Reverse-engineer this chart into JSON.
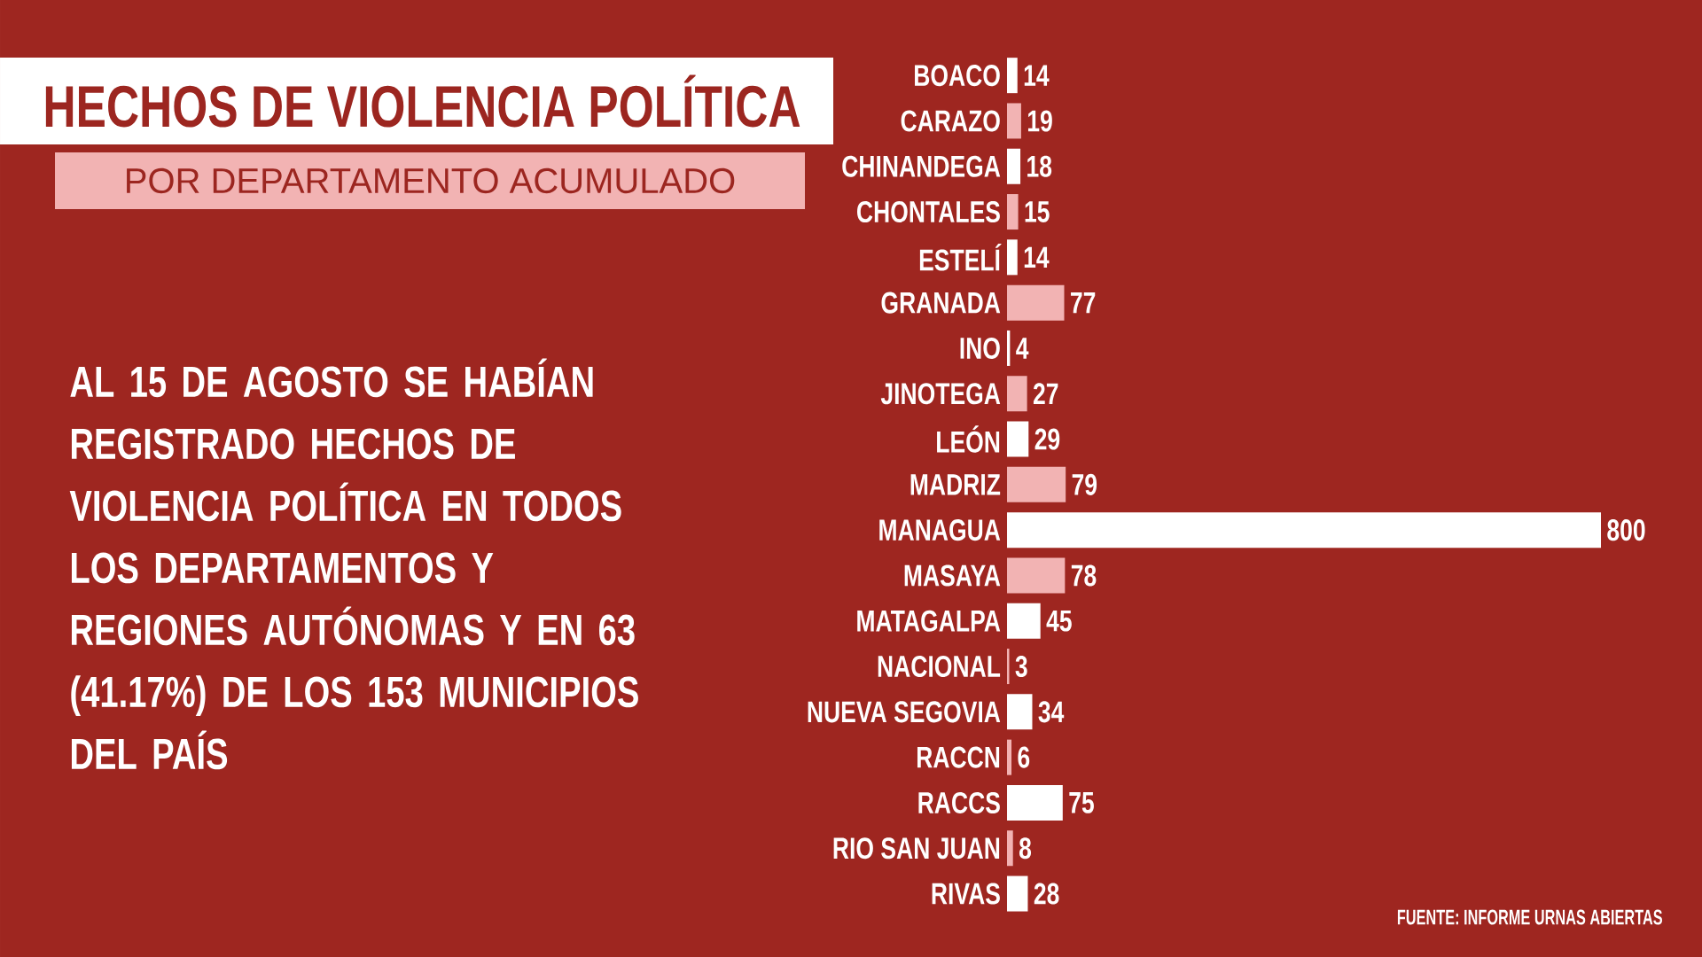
{
  "chart_data": {
    "type": "bar",
    "orientation": "horizontal",
    "title": "HECHOS DE VIOLENCIA POLÍTICA",
    "subtitle": "POR DEPARTAMENTO ACUMULADO",
    "categories": [
      "BOACO",
      "CARAZO",
      "CHINANDEGA",
      "CHONTALES",
      "ESTELÍ",
      "GRANADA",
      "INO",
      "JINOTEGA",
      "LEÓN",
      "MADRIZ",
      "MANAGUA",
      "MASAYA",
      "MATAGALPA",
      "NACIONAL",
      "NUEVA SEGOVIA",
      "RACCN",
      "RACCS",
      "RIO SAN JUAN",
      "RIVAS"
    ],
    "values": [
      14,
      19,
      18,
      15,
      14,
      77,
      4,
      27,
      29,
      79,
      800,
      78,
      45,
      3,
      34,
      6,
      75,
      8,
      28
    ],
    "colors": [
      "#ffffff",
      "#f2b3b3",
      "#ffffff",
      "#f2b3b3",
      "#ffffff",
      "#f2b3b3",
      "#ffffff",
      "#f2b3b3",
      "#ffffff",
      "#f2b3b3",
      "#ffffff",
      "#f2b3b3",
      "#ffffff",
      "#f2b3b3",
      "#ffffff",
      "#f2b3b3",
      "#ffffff",
      "#f2b3b3",
      "#ffffff"
    ],
    "data_labels": true,
    "tick_labels": "y",
    "annotations": [
      "AL 15 DE AGOSTO SE HABÍAN REGISTRADO HECHOS DE VIOLENCIA POLÍTICA EN TODOS LOS DEPARTAMENTOS Y REGIONES AUTÓNOMAS Y EN 63 (41.17%) DE LOS 153 MUNICIPIOS DEL PAÍS",
      "FUENTE: INFORME URNAS ABIERTAS"
    ]
  }
}
